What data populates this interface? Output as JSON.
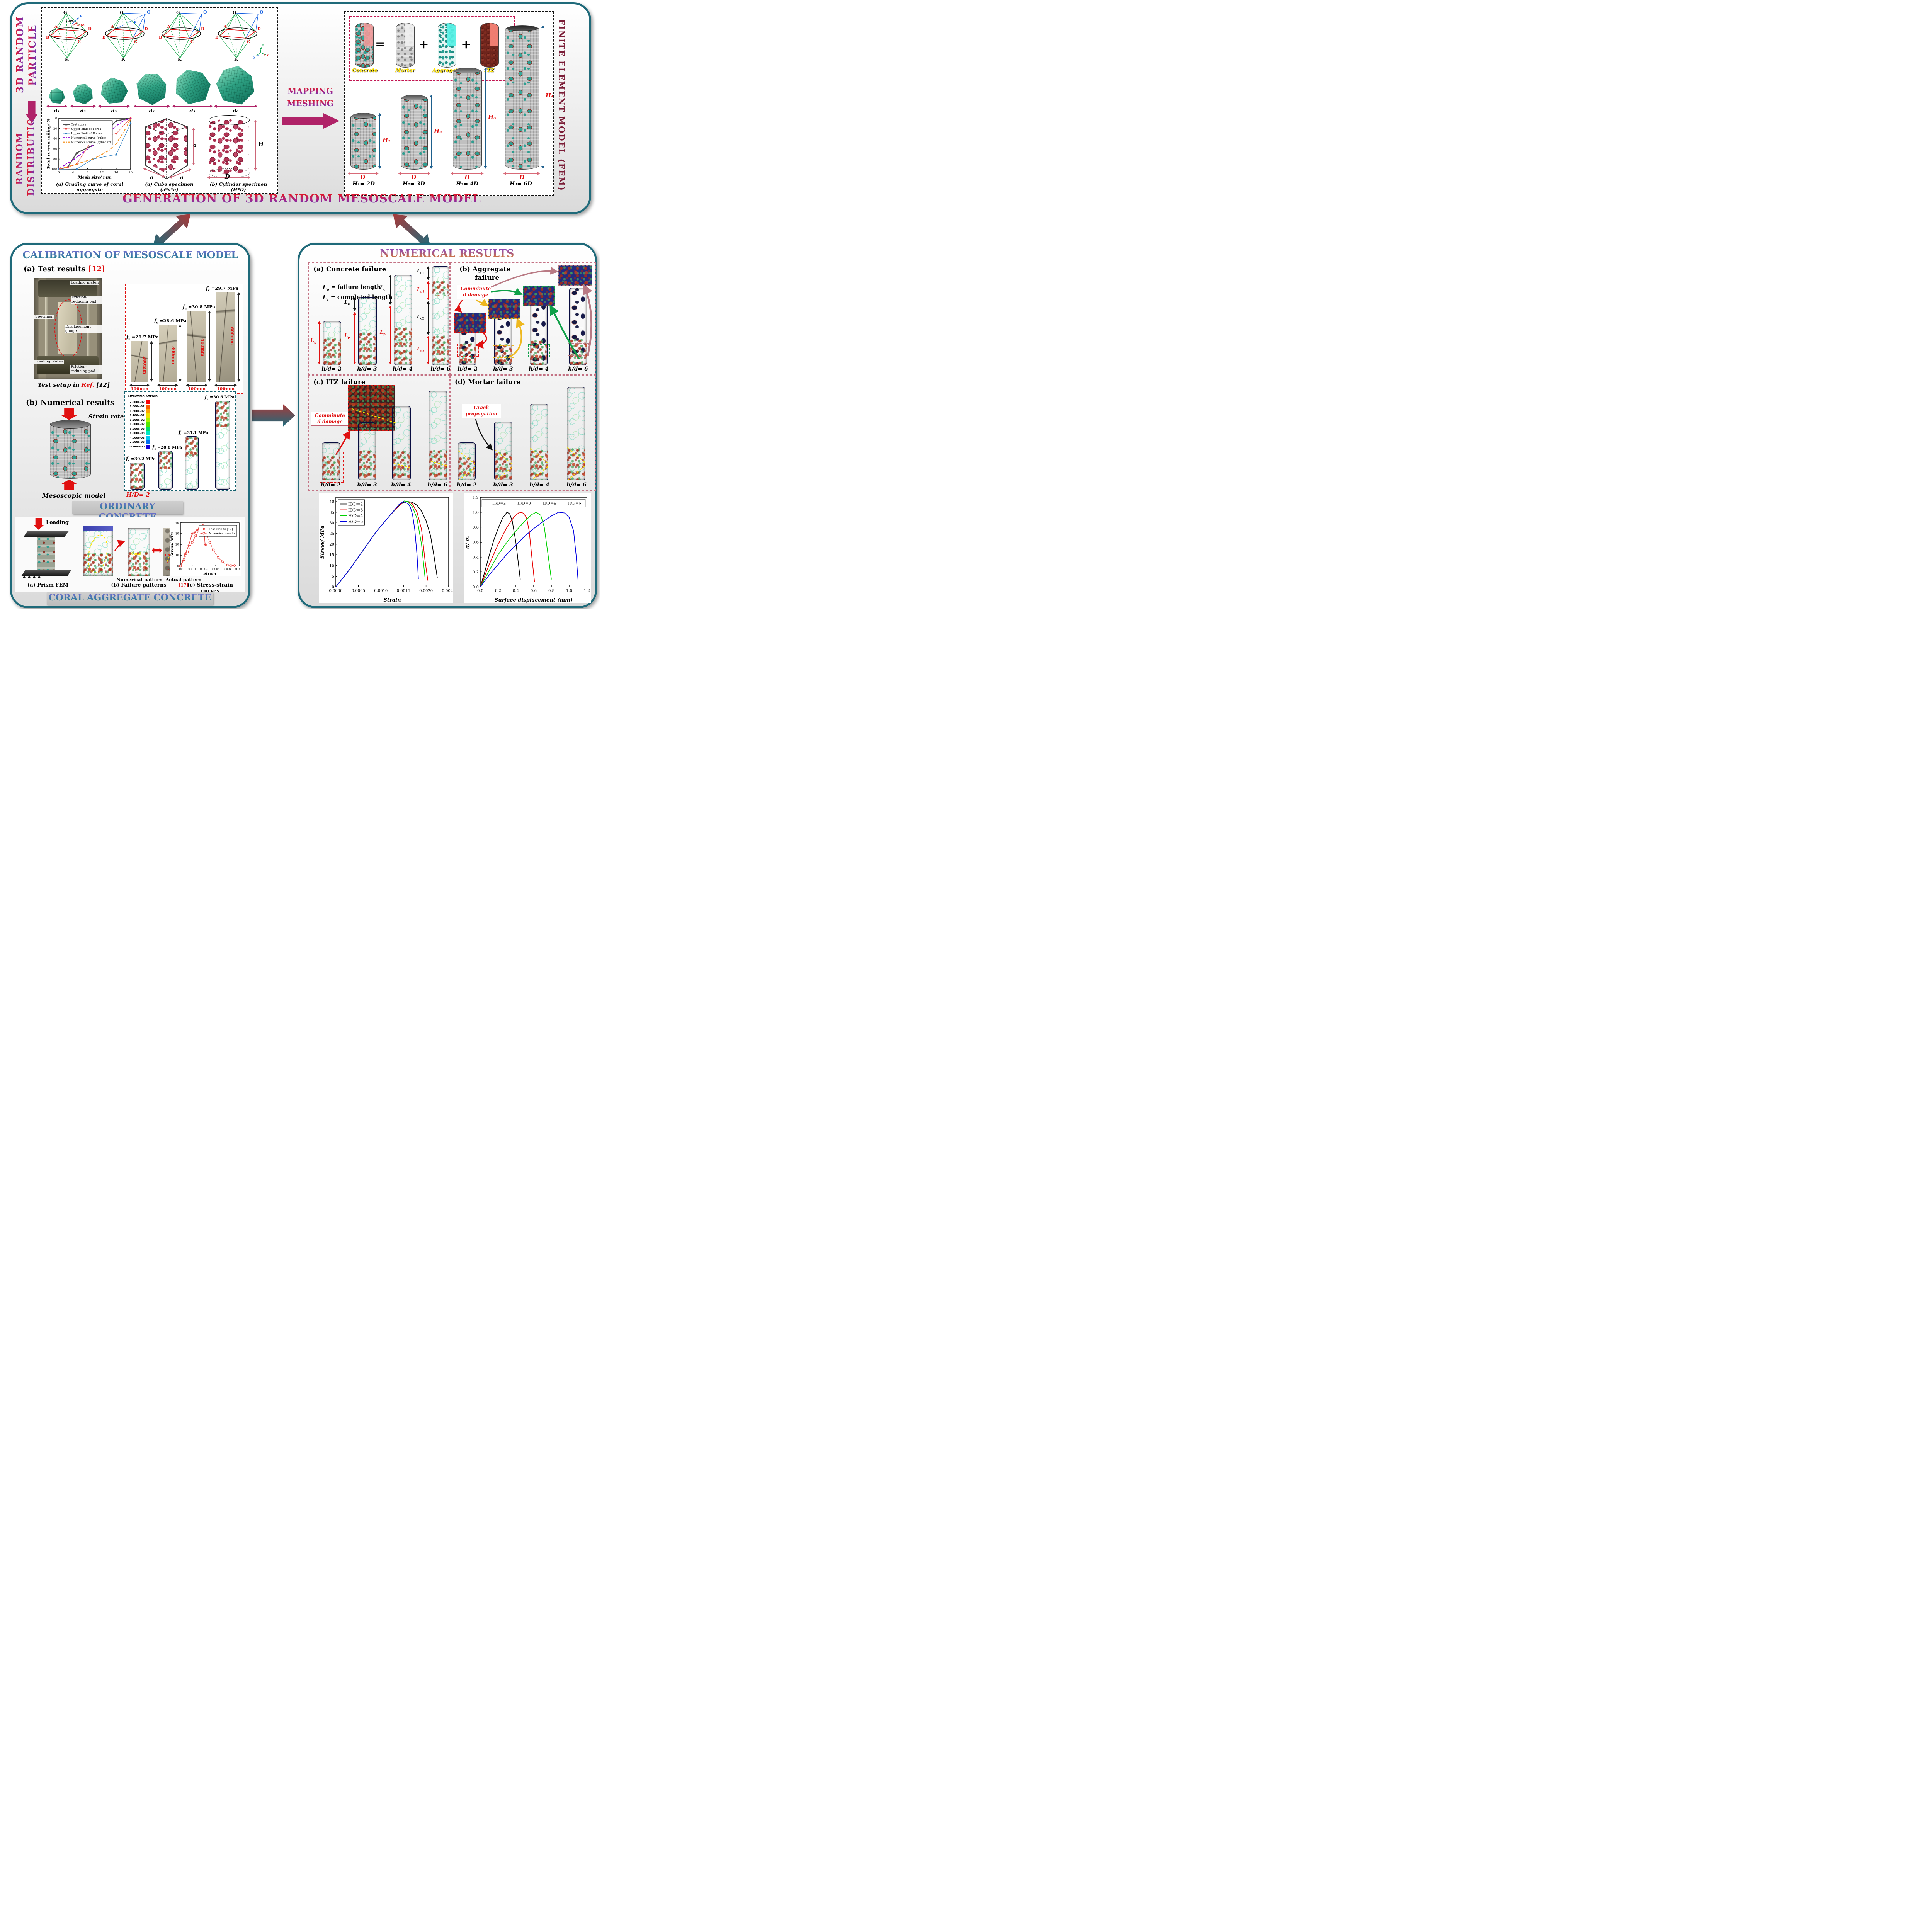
{
  "palette": {
    "magenta_arrow": "#b02368",
    "teal_border": "#1f6a7a",
    "red_accent": "#e01010",
    "maroon_label": "#7b1d37",
    "crimson_box": "#c21350",
    "yellow_crack": "#ffe400"
  },
  "top_panel": {
    "title": "GENERATION OF 3D RANDOM MESOSCALE MODEL",
    "left_top_1": "3D RANDOM",
    "left_top_2": "PARTICLE",
    "left_bot_1": "RANDOM",
    "left_bot_2": "DISTRIBUTION",
    "octa": {
      "g": "G",
      "k": "K",
      "a": "A",
      "b": "B",
      "c": "C",
      "d": "D",
      "q": "Q",
      "p": "P",
      "v": "v",
      "vgdc": "VGDC",
      "vgda": "VGDA",
      "x": "x",
      "y": "y",
      "z": "z"
    },
    "particles": [
      "d₁",
      "d₂",
      "d₃",
      "d₄",
      "d₅",
      "d₆"
    ],
    "cube": {
      "dim_left": "a",
      "dim_right": "a",
      "dim_height": "a",
      "caption": "(a) Cube specimen (a*a*a)"
    },
    "cyl": {
      "h": "H",
      "d": "D",
      "caption": "(b) Cylinder specimen (H*D)"
    },
    "mapping_1": "MAPPING",
    "mapping_2": "MESHING",
    "fem": {
      "side_label": "FINITE ELEMENT MODEL (FEM)",
      "eq_concrete": "Concrete",
      "eq_equals": "=",
      "eq_mortar": "Mortar",
      "eq_plus1": "+",
      "eq_aggregate": "Aggregate",
      "eq_plus2": "+",
      "eq_itz": "ITZ",
      "cylinders": [
        {
          "h": "H₁",
          "d": "D",
          "eq": "H₁= 2D"
        },
        {
          "h": "H₂",
          "d": "D",
          "eq": "H₂= 3D"
        },
        {
          "h": "H₃",
          "d": "D",
          "eq": "H₃= 4D"
        },
        {
          "h": "H₄",
          "d": "D",
          "eq": "H₄= 6D"
        }
      ]
    }
  },
  "calibration": {
    "title": "CALIBRATION OF MESOSCALE MODEL",
    "test_heading": {
      "text": "(a) Test results ",
      "ref": "[12]"
    },
    "machine_labels": [
      "Loading platen",
      "Friction-reducing pad",
      "Specimen",
      "Displacement gauge",
      "Loading  platen",
      "Friction-reducing pad"
    ],
    "test_caption": {
      "pre": "Test setup in ",
      "ref": "Ref.",
      "num": " [12]"
    },
    "test_specimens": [
      {
        "sym": "f",
        "sub": "c",
        "val": " =29.7 MPa",
        "h": "200mm",
        "w": "100mm"
      },
      {
        "sym": "f",
        "sub": "c",
        "val": " =28.6 MPa",
        "h": "300mm",
        "w": "100mm"
      },
      {
        "sym": "f",
        "sub": "c",
        "val": " =30.8 MPa",
        "h": "400mm",
        "w": "100mm"
      },
      {
        "sym": "f",
        "sub": "c",
        "val": " =29.7 MPa",
        "h": "600mm",
        "w": "100mm"
      }
    ],
    "num_heading": "(b) Numerical results",
    "strain_rate": {
      "pre": "Strain rate: 10",
      "sup": "-5",
      "post": "/s"
    },
    "meso_caption": "Mesoscopic model",
    "colorbar": {
      "title": "Effective Strain",
      "entries": [
        {
          "v": "2.000e-02",
          "c": "#fb0007"
        },
        {
          "v": "1.800e-02",
          "c": "#fc5b00"
        },
        {
          "v": "1.600e-02",
          "c": "#ffa400"
        },
        {
          "v": "1.400e-02",
          "c": "#f2e200"
        },
        {
          "v": "1.200e-02",
          "c": "#a6f500"
        },
        {
          "v": "1.000e-02",
          "c": "#52e800"
        },
        {
          "v": "8.000e-03",
          "c": "#00e06a"
        },
        {
          "v": "6.000e-03",
          "c": "#00e8c4"
        },
        {
          "v": "4.000e-03",
          "c": "#00ccf4"
        },
        {
          "v": "2.000e-03",
          "c": "#0070f0"
        },
        {
          "v": "0.000e+00",
          "c": "#1400d8"
        }
      ]
    },
    "num_specimens": [
      {
        "sym": "f",
        "sub": "c",
        "val": " =30.2 MPa"
      },
      {
        "sym": "f",
        "sub": "c",
        "val": " =28.8 MPa"
      },
      {
        "sym": "f",
        "sub": "c",
        "val": " =31.1 MPa"
      },
      {
        "sym": "f",
        "sub": "c",
        "val": " =30.6 MPa"
      }
    ],
    "hd": "H/D= 2",
    "ordinary": "ORDINARY CONCRETE",
    "coral": {
      "loading": "Loading",
      "prism_caption": "(a) Prism FEM",
      "fp_caption": "(b) Failure patterns",
      "numerical": "Numerical pattern",
      "actual_pre": "Actual pattern ",
      "actual_ref": "[17]",
      "coral_tag": "Coral"
    },
    "banner": "CORAL AGGREGATE CONCRETE"
  },
  "results": {
    "title": "NUMERICAL RESULTS",
    "hd_labels": [
      "h/d= 2",
      "h/d= 3",
      "h/d= 4",
      "h/d= 6"
    ],
    "a": {
      "heading": "(a) Concrete failure",
      "def1": {
        "sym": "L",
        "sub": "p",
        "rest": " = failure length"
      },
      "def2": {
        "sym": "L",
        "sub": "c",
        "rest": " = completed length"
      },
      "dims": {
        "lp": {
          "sym": "L",
          "sub": "p"
        },
        "lc": {
          "sym": "L",
          "sub": "c"
        },
        "lc1": {
          "sym": "L",
          "sub": "c1"
        },
        "lp1": {
          "sym": "L",
          "sub": "p1"
        },
        "lc2": {
          "sym": "L",
          "sub": "c2"
        },
        "lp2": {
          "sym": "L",
          "sub": "p2"
        }
      }
    },
    "b": {
      "h1": "(b) Aggregate",
      "h2": "failure",
      "note1": "Comminute",
      "note2": "d damage"
    },
    "c": {
      "heading": "(c) ITZ failure",
      "note1": "Comminute",
      "note2": "d damage"
    },
    "d": {
      "heading": "(d) Mortar failure",
      "note1": "Crack",
      "note2": "propagation"
    }
  },
  "chart_data": [
    {
      "id": "grading-curve",
      "type": "line",
      "title": "(a) Grading curve of coral aggregate",
      "xlabel": "Mesh size/ mm",
      "ylabel": "Total screen tailing/ %",
      "xlim": [
        0,
        20
      ],
      "ylim": [
        100,
        0
      ],
      "x_ticks": [
        0,
        4,
        8,
        12,
        16,
        20
      ],
      "y_ticks": [
        0,
        20,
        40,
        60,
        80,
        100
      ],
      "mg": [
        34,
        8,
        8,
        28
      ],
      "tf": 8,
      "lf": 10.5,
      "legf": 7.5,
      "legend": {
        "pos": "nw",
        "dir": "v"
      },
      "series": [
        {
          "name": "Test curve",
          "color": "#4d4d4d",
          "style": "solid",
          "marker": "tri",
          "lw": 2.6,
          "x": [
            0,
            2.5,
            5,
            9.5,
            16,
            20
          ],
          "y": [
            100,
            96,
            68,
            53,
            5,
            0
          ]
        },
        {
          "name": "Upper limit of I area",
          "color": "#e8433e",
          "style": "solid",
          "marker": "dot",
          "lw": 1.2,
          "x": [
            0,
            2.5,
            5,
            9.5,
            16,
            20
          ],
          "y": [
            100,
            96,
            90,
            40,
            30,
            0
          ]
        },
        {
          "name": "Upper limit of II area",
          "color": "#2f7fc1",
          "style": "solid",
          "marker": "tri",
          "lw": 1.2,
          "x": [
            0,
            5,
            9.5,
            16,
            20
          ],
          "y": [
            100,
            99.5,
            80,
            71,
            10
          ]
        },
        {
          "name": "Numerical curve (cube)",
          "color": "#9400d3",
          "style": "dashdot",
          "lw": 2.2,
          "x": [
            0,
            2,
            4,
            6,
            8,
            10,
            12,
            14,
            16,
            18,
            20
          ],
          "y": [
            100,
            90,
            82,
            71,
            61,
            51,
            40,
            28,
            15,
            5,
            0
          ]
        },
        {
          "name": "Numerical curve (cylinder)",
          "color": "#f59322",
          "style": "dashdot",
          "lw": 2.2,
          "x": [
            0,
            2.5,
            5,
            8,
            9.5,
            12,
            14,
            16,
            18,
            20
          ],
          "y": [
            100,
            95,
            90,
            83,
            80,
            71,
            63,
            50,
            28,
            2
          ]
        }
      ]
    },
    {
      "id": "coral-stress-strain",
      "type": "line",
      "title": "(c) Stress-strain curves",
      "xlabel": "Strain",
      "ylabel": "Stress/ MPa",
      "xlim": [
        0,
        0.005
      ],
      "ylim": [
        0,
        40
      ],
      "x_ticks": [
        0,
        0.001,
        0.002,
        0.003,
        0.004,
        0.005
      ],
      "x_tick_labels": [
        "0.000",
        "0.001",
        "0.002",
        "0.003",
        "0.004",
        "0.005"
      ],
      "y_ticks": [
        0,
        10,
        20,
        30,
        40
      ],
      "mg": [
        28,
        8,
        6,
        26
      ],
      "tf": 7,
      "lf": 9.5,
      "legf": 7.5,
      "legend": {
        "pos": "ne",
        "dir": "v"
      },
      "series": [
        {
          "name": "Test results [17]",
          "color": "#e8433e",
          "style": "solid",
          "marker": "dot",
          "lw": 1.6,
          "x": [
            0,
            0.0002,
            0.0004,
            0.0007,
            0.001,
            0.0012,
            0.0014,
            0.0016,
            0.0017,
            0.0018,
            0.002,
            0.0021,
            0.00215
          ],
          "y": [
            0,
            5,
            11,
            19,
            30,
            31,
            33,
            35,
            35.5,
            36,
            33.5,
            20,
            19.5
          ]
        },
        {
          "name": "Numerical results",
          "color": "#e8433e",
          "style": "dashed",
          "marker": "odot",
          "lw": 1.4,
          "x": [
            0,
            0.0003,
            0.0006,
            0.001,
            0.0013,
            0.0016,
            0.0018,
            0.0019,
            0.002,
            0.0022,
            0.0025,
            0.0028,
            0.0032,
            0.0036,
            0.004,
            0.0043,
            0.0046
          ],
          "y": [
            0,
            6,
            13,
            22,
            28,
            34,
            37,
            37.5,
            36.5,
            30,
            22,
            15,
            8,
            4,
            1,
            0.5,
            0.5
          ]
        }
      ]
    },
    {
      "id": "hd-stress-strain",
      "type": "line",
      "title": "",
      "xlabel": "Strain",
      "ylabel": "Stress/ MPa",
      "xlim": [
        0,
        0.0025
      ],
      "ylim": [
        0,
        42
      ],
      "x_ticks": [
        0,
        0.0005,
        0.001,
        0.0015,
        0.002,
        0.0025
      ],
      "x_tick_labels": [
        "0.0000",
        "0.0005",
        "0.0010",
        "0.0015",
        "0.0020",
        "0.0025"
      ],
      "y_ticks": [
        0,
        5,
        10,
        15,
        20,
        25,
        30,
        35,
        40
      ],
      "mg": [
        44,
        10,
        12,
        42
      ],
      "tf": 10,
      "lf": 13,
      "legf": 11,
      "legend": {
        "pos": "nw",
        "dir": "v"
      },
      "series": [
        {
          "name": "H/D=2",
          "color": "#000000",
          "style": "solid",
          "lw": 1.8,
          "x": [
            0,
            0.0003,
            0.0006,
            0.0009,
            0.0012,
            0.0014,
            0.0015,
            0.0016,
            0.0017,
            0.0018,
            0.0019,
            0.002,
            0.0021,
            0.00218,
            0.00225
          ],
          "y": [
            0,
            8,
            17,
            26,
            33.5,
            38,
            39.6,
            40,
            39.6,
            38.3,
            35.5,
            31,
            24,
            14,
            4.2
          ]
        },
        {
          "name": "H/D=3",
          "color": "#e60000",
          "style": "solid",
          "lw": 1.8,
          "x": [
            0,
            0.0003,
            0.0006,
            0.0009,
            0.0012,
            0.0014,
            0.0015,
            0.0016,
            0.0017,
            0.0018,
            0.0019,
            0.00198,
            0.00204
          ],
          "y": [
            0,
            8,
            17,
            26,
            33.5,
            38.2,
            39.8,
            40,
            38.8,
            35,
            27,
            12,
            3
          ]
        },
        {
          "name": "H/D=4",
          "color": "#00d000",
          "style": "solid",
          "lw": 1.8,
          "x": [
            0,
            0.0003,
            0.0006,
            0.0009,
            0.0012,
            0.0014,
            0.00152,
            0.0016,
            0.0017,
            0.0018,
            0.0019,
            0.00198
          ],
          "y": [
            0,
            8,
            17,
            26,
            33.5,
            38.5,
            40.3,
            40,
            37.5,
            32,
            20,
            4
          ]
        },
        {
          "name": "H/D=6",
          "color": "#0000e0",
          "style": "solid",
          "lw": 1.8,
          "x": [
            0,
            0.0003,
            0.0006,
            0.0009,
            0.0012,
            0.0014,
            0.0015,
            0.0016,
            0.00165,
            0.0017,
            0.00175,
            0.0018,
            0.00183
          ],
          "y": [
            0,
            8,
            17,
            26,
            33.5,
            38.6,
            40,
            39,
            37.5,
            34,
            27,
            15,
            3.8
          ]
        }
      ]
    },
    {
      "id": "normalized-stress-displacement",
      "type": "line",
      "title": "",
      "xlabel": "Surface displacement (mm)",
      "ylabel": "σ/ σ₀",
      "xlim": [
        0,
        1.2
      ],
      "ylim": [
        0,
        1.2
      ],
      "x_ticks": [
        0,
        0.2,
        0.4,
        0.6,
        0.8,
        1,
        1.2
      ],
      "x_tick_labels": [
        "0.0",
        "0.2",
        "0.4",
        "0.6",
        "0.8",
        "1.0",
        "1.2"
      ],
      "y_ticks": [
        0,
        0.2,
        0.4,
        0.6,
        0.8,
        1,
        1.2
      ],
      "y_tick_labels": [
        "0.0",
        "0.2",
        "0.4",
        "0.6",
        "0.8",
        "1.0",
        "1.2"
      ],
      "mg": [
        42,
        10,
        10,
        42
      ],
      "tf": 10,
      "lf": 13,
      "legf": 10,
      "legend": {
        "pos": "n",
        "dir": "h"
      },
      "series": [
        {
          "name": "H/D=2",
          "color": "#000000",
          "style": "solid",
          "lw": 1.8,
          "x": [
            0,
            0.05,
            0.1,
            0.15,
            0.2,
            0.25,
            0.3,
            0.33,
            0.36,
            0.4,
            0.43,
            0.45
          ],
          "y": [
            0,
            0.2,
            0.42,
            0.62,
            0.78,
            0.92,
            1,
            0.98,
            0.88,
            0.6,
            0.3,
            0.1
          ]
        },
        {
          "name": "H/D=3",
          "color": "#e60000",
          "style": "solid",
          "lw": 1.8,
          "x": [
            0,
            0.1,
            0.2,
            0.3,
            0.38,
            0.44,
            0.48,
            0.52,
            0.55,
            0.58,
            0.61
          ],
          "y": [
            0,
            0.3,
            0.57,
            0.8,
            0.94,
            1,
            0.99,
            0.93,
            0.75,
            0.4,
            0.07
          ]
        },
        {
          "name": "H/D=4",
          "color": "#00d000",
          "style": "solid",
          "lw": 1.8,
          "x": [
            0,
            0.1,
            0.2,
            0.3,
            0.4,
            0.5,
            0.58,
            0.63,
            0.68,
            0.72,
            0.76,
            0.8
          ],
          "y": [
            0,
            0.22,
            0.43,
            0.6,
            0.75,
            0.88,
            0.97,
            1,
            0.96,
            0.8,
            0.45,
            0.1
          ]
        },
        {
          "name": "H/D=6",
          "color": "#0000e0",
          "style": "solid",
          "lw": 1.8,
          "x": [
            0,
            0.1,
            0.2,
            0.3,
            0.4,
            0.5,
            0.6,
            0.7,
            0.8,
            0.88,
            0.95,
            1,
            1.05,
            1.08,
            1.1
          ],
          "y": [
            0,
            0.16,
            0.3,
            0.44,
            0.56,
            0.68,
            0.78,
            0.87,
            0.95,
            1,
            0.99,
            0.93,
            0.75,
            0.4,
            0.09
          ]
        }
      ]
    }
  ]
}
